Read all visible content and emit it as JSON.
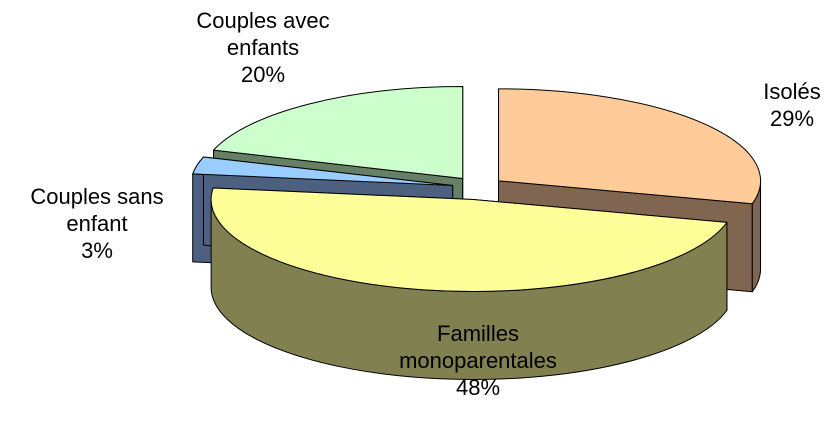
{
  "chart_data": {
    "type": "pie3d",
    "categories": [
      "Isolés",
      "Familles monoparentales",
      "Couples sans enfant",
      "Couples avec enfants"
    ],
    "values": [
      29,
      48,
      3,
      20
    ],
    "value_labels": [
      "29%",
      "48%",
      "3%",
      "20%"
    ],
    "colors": [
      "#FFCC99",
      "#FFFF99",
      "#99CCFF",
      "#CCFFCC"
    ],
    "side_colors": [
      "#806650",
      "#808050",
      "#4D6080",
      "#668066"
    ]
  }
}
